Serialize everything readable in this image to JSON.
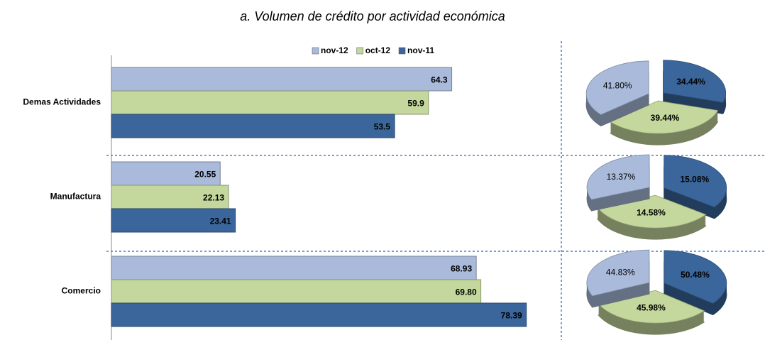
{
  "chart_data": [
    {
      "type": "bar",
      "orientation": "horizontal",
      "title": "a.    Volumen de crédito por actividad  económica",
      "categories": [
        "Demas Actividades",
        "Manufactura",
        "Comercio"
      ],
      "series": [
        {
          "name": "nov-12",
          "color": "#a9badb",
          "values": [
            64.3,
            20.55,
            68.93
          ],
          "value_labels": [
            "64.3",
            "20.55",
            "68.93"
          ]
        },
        {
          "name": "oct-12",
          "color": "#c4d79c",
          "values": [
            59.9,
            22.13,
            69.8
          ],
          "value_labels": [
            "59.9",
            "22.13",
            "69.80"
          ]
        },
        {
          "name": "nov-11",
          "color": "#3b669b",
          "values": [
            53.5,
            23.41,
            78.39
          ],
          "value_labels": [
            "53.5",
            "23.41",
            "78.39"
          ]
        }
      ],
      "xlim": [
        0,
        85
      ],
      "legend": "top"
    },
    {
      "type": "pie",
      "colors": [
        "#a9badb",
        "#c4d79c",
        "#3b669b"
      ],
      "values": [
        41.8,
        39.44,
        34.44
      ],
      "value_labels": [
        "41.80%",
        "39.44%",
        "34.44%"
      ]
    },
    {
      "type": "pie",
      "colors": [
        "#a9badb",
        "#c4d79c",
        "#3b669b"
      ],
      "values": [
        13.37,
        14.58,
        15.08
      ],
      "value_labels": [
        "13.37%",
        "14.58%",
        "15.08%"
      ]
    },
    {
      "type": "pie",
      "colors": [
        "#a9badb",
        "#c4d79c",
        "#3b669b"
      ],
      "values": [
        44.83,
        45.98,
        50.48
      ],
      "value_labels": [
        "44.83%",
        "45.98%",
        "50.48%"
      ]
    }
  ]
}
